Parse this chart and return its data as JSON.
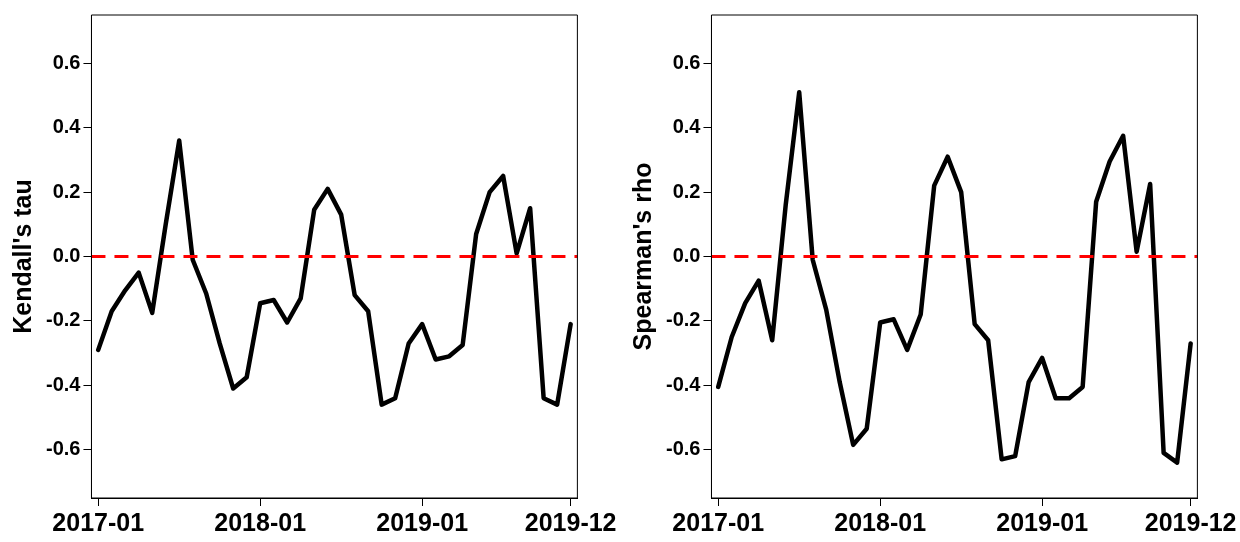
{
  "chart_data": [
    {
      "type": "line",
      "ylabel": "Kendall's tau",
      "categories": [
        "2017-01",
        null,
        null,
        null,
        null,
        null,
        null,
        null,
        null,
        null,
        null,
        null,
        "2018-01",
        null,
        null,
        null,
        null,
        null,
        null,
        null,
        null,
        null,
        null,
        null,
        "2019-01",
        null,
        null,
        null,
        null,
        null,
        null,
        null,
        null,
        null,
        null,
        "2019-12"
      ],
      "series": [
        {
          "color": "#000000",
          "values": [
            -0.29,
            -0.17,
            -0.105,
            -0.05,
            -0.175,
            0.1,
            0.36,
            -0.01,
            -0.115,
            -0.27,
            -0.41,
            -0.375,
            -0.145,
            -0.135,
            -0.205,
            -0.13,
            0.145,
            0.21,
            0.13,
            -0.12,
            -0.17,
            -0.46,
            -0.44,
            -0.27,
            -0.21,
            -0.32,
            -0.31,
            -0.275,
            0.07,
            0.2,
            0.25,
            0.01,
            0.15,
            -0.44,
            -0.46,
            -0.21
          ]
        }
      ],
      "ylim": [
        -0.75,
        0.75
      ],
      "yticks": [
        {
          "value": -0.6,
          "label": "-0.6"
        },
        {
          "value": -0.4,
          "label": "-0.4"
        },
        {
          "value": -0.2,
          "label": "-0.2"
        },
        {
          "value": 0,
          "label": "0.0"
        },
        {
          "value": 0.2,
          "label": "0.2"
        },
        {
          "value": 0.4,
          "label": "0.4"
        },
        {
          "value": 0.6,
          "label": "0.6"
        }
      ],
      "ref_lines": [
        {
          "axis": "y",
          "value": 0,
          "color": "#ff0000",
          "line_style": "dashed"
        }
      ],
      "grid": false,
      "legend": false,
      "marker": "none",
      "line_style": "solid"
    },
    {
      "type": "line",
      "ylabel": "Spearman's rho",
      "categories": [
        "2017-01",
        null,
        null,
        null,
        null,
        null,
        null,
        null,
        null,
        null,
        null,
        null,
        "2018-01",
        null,
        null,
        null,
        null,
        null,
        null,
        null,
        null,
        null,
        null,
        null,
        "2019-01",
        null,
        null,
        null,
        null,
        null,
        null,
        null,
        null,
        null,
        null,
        "2019-12"
      ],
      "series": [
        {
          "color": "#000000",
          "values": [
            -0.405,
            -0.25,
            -0.145,
            -0.075,
            -0.26,
            0.16,
            0.51,
            -0.01,
            -0.165,
            -0.39,
            -0.585,
            -0.535,
            -0.205,
            -0.195,
            -0.29,
            -0.18,
            0.22,
            0.31,
            0.2,
            -0.21,
            -0.26,
            -0.63,
            -0.62,
            -0.39,
            -0.315,
            -0.44,
            -0.44,
            -0.405,
            0.17,
            0.295,
            0.375,
            0.015,
            0.225,
            -0.61,
            -0.64,
            -0.27
          ]
        }
      ],
      "ylim": [
        -0.75,
        0.75
      ],
      "yticks": [
        {
          "value": -0.6,
          "label": "-0.6"
        },
        {
          "value": -0.4,
          "label": "-0.4"
        },
        {
          "value": -0.2,
          "label": "-0.2"
        },
        {
          "value": 0,
          "label": "0.0"
        },
        {
          "value": 0.2,
          "label": "0.2"
        },
        {
          "value": 0.4,
          "label": "0.4"
        },
        {
          "value": 0.6,
          "label": "0.6"
        }
      ],
      "ref_lines": [
        {
          "axis": "y",
          "value": 0,
          "color": "#ff0000",
          "line_style": "dashed"
        }
      ],
      "grid": false,
      "legend": false,
      "marker": "none",
      "line_style": "solid"
    }
  ]
}
